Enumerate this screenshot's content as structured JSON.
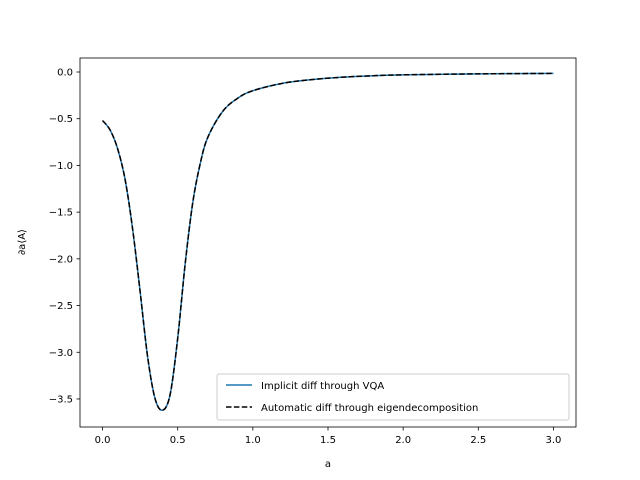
{
  "chart_data": {
    "type": "line",
    "xlabel": "a",
    "ylabel": "∂a⟨A⟩",
    "xlim": [
      -0.15,
      3.15
    ],
    "ylim": [
      -3.8,
      0.15
    ],
    "x_ticks": [
      0.0,
      0.5,
      1.0,
      1.5,
      2.0,
      2.5,
      3.0
    ],
    "x_tick_labels": [
      "0.0",
      "0.5",
      "1.0",
      "1.5",
      "2.0",
      "2.5",
      "3.0"
    ],
    "y_ticks": [
      0.0,
      -0.5,
      -1.0,
      -1.5,
      -2.0,
      -2.5,
      -3.0,
      -3.5
    ],
    "y_tick_labels": [
      "0.0",
      "−0.5",
      "−1.0",
      "−1.5",
      "−2.0",
      "−2.5",
      "−3.0",
      "−3.5"
    ],
    "grid": false,
    "legend_position": "lower-right",
    "x": [
      0.0,
      0.05,
      0.1,
      0.15,
      0.2,
      0.25,
      0.3,
      0.35,
      0.4,
      0.45,
      0.5,
      0.55,
      0.6,
      0.65,
      0.7,
      0.8,
      0.9,
      1.0,
      1.2,
      1.4,
      1.6,
      1.8,
      2.0,
      2.5,
      3.0
    ],
    "series": [
      {
        "name": "Implicit diff through VQA",
        "color": "#1f77b4",
        "style": "solid",
        "values": [
          -0.52,
          -0.62,
          -0.82,
          -1.15,
          -1.68,
          -2.35,
          -3.05,
          -3.5,
          -3.62,
          -3.45,
          -2.85,
          -2.05,
          -1.4,
          -0.98,
          -0.7,
          -0.42,
          -0.28,
          -0.2,
          -0.12,
          -0.08,
          -0.055,
          -0.04,
          -0.03,
          -0.02,
          -0.015
        ]
      },
      {
        "name": "Automatic diff through eigendecomposition",
        "color": "#000000",
        "style": "dashed",
        "values": [
          -0.52,
          -0.62,
          -0.82,
          -1.15,
          -1.68,
          -2.35,
          -3.05,
          -3.5,
          -3.62,
          -3.45,
          -2.85,
          -2.05,
          -1.4,
          -0.98,
          -0.7,
          -0.42,
          -0.28,
          -0.2,
          -0.12,
          -0.08,
          -0.055,
          -0.04,
          -0.03,
          -0.02,
          -0.015
        ]
      }
    ]
  }
}
